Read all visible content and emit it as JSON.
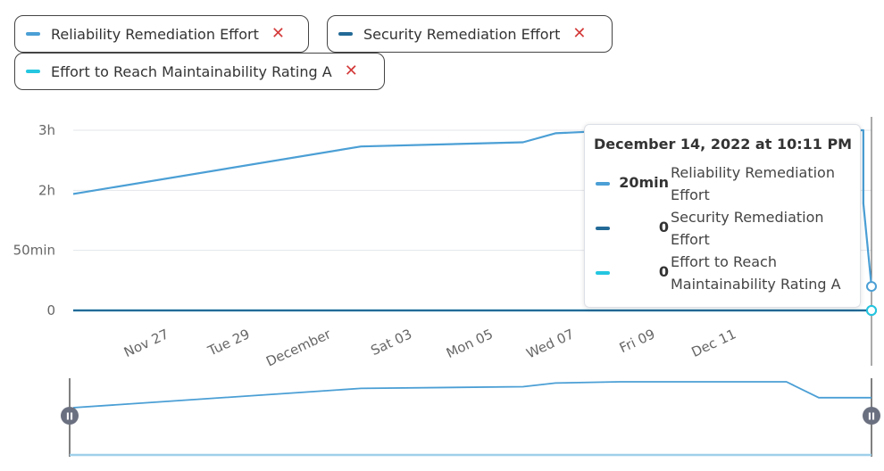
{
  "legend": {
    "chips": [
      {
        "label": "Reliability Remediation Effort",
        "color": "#4b9fd5",
        "remove_glyph": "✕"
      },
      {
        "label": "Security Remediation Effort",
        "color": "#236a97",
        "remove_glyph": "✕"
      },
      {
        "label": "Effort to Reach Maintainability Rating A",
        "color": "#24c6e0",
        "remove_glyph": "✕"
      }
    ]
  },
  "tooltip": {
    "title": "December 14, 2022 at 10:11 PM",
    "rows": [
      {
        "value": "20min",
        "name": "Reliability Remediation Effort",
        "color": "#4b9fd5"
      },
      {
        "value": "0",
        "name": "Security Remediation Effort",
        "color": "#236a97"
      },
      {
        "value": "0",
        "name": "Effort to Reach Maintainability Rating A",
        "color": "#24c6e0"
      }
    ]
  },
  "chart_data": {
    "type": "line",
    "y_ticks": [
      "0",
      "50min",
      "2h",
      "3h"
    ],
    "y_tick_values": [
      0,
      1,
      2,
      3
    ],
    "x_ticks": [
      "Nov 27",
      "Tue 29",
      "December",
      "Sat 03",
      "Mon 05",
      "Wed 07",
      "Fri 09",
      "Dec 11"
    ],
    "x_tick_days": [
      0,
      2,
      4,
      6,
      8,
      10,
      12,
      14
    ],
    "x_range_days": [
      -1.5,
      18.2
    ],
    "ylim": [
      0,
      3
    ],
    "grid": "horizontal",
    "series": [
      {
        "name": "Reliability Remediation Effort",
        "color": "#4b9fd5",
        "points": [
          [
            -1.5,
            1.94
          ],
          [
            5.6,
            2.73
          ],
          [
            9.6,
            2.8
          ],
          [
            10.4,
            2.95
          ],
          [
            12.0,
            3.0
          ],
          [
            18.0,
            3.0
          ],
          [
            18.0,
            1.78
          ],
          [
            18.2,
            0.4
          ]
        ]
      },
      {
        "name": "Security Remediation Effort",
        "color": "#236a97",
        "points": [
          [
            -1.5,
            0
          ],
          [
            18.2,
            0
          ]
        ]
      },
      {
        "name": "Effort to Reach Maintainability Rating A",
        "color": "#24c6e0",
        "points": [
          [
            -1.5,
            0
          ],
          [
            18.2,
            0
          ]
        ]
      }
    ]
  },
  "navigator": {
    "color": "#4b9fd5",
    "handle_glyph": "II",
    "points": [
      [
        -1.5,
        1.94
      ],
      [
        5.6,
        2.73
      ],
      [
        9.6,
        2.8
      ],
      [
        10.4,
        2.95
      ],
      [
        12.0,
        3.0
      ],
      [
        16.1,
        3.0
      ],
      [
        16.9,
        2.35
      ],
      [
        18.2,
        2.35
      ]
    ],
    "baseline": 0
  }
}
